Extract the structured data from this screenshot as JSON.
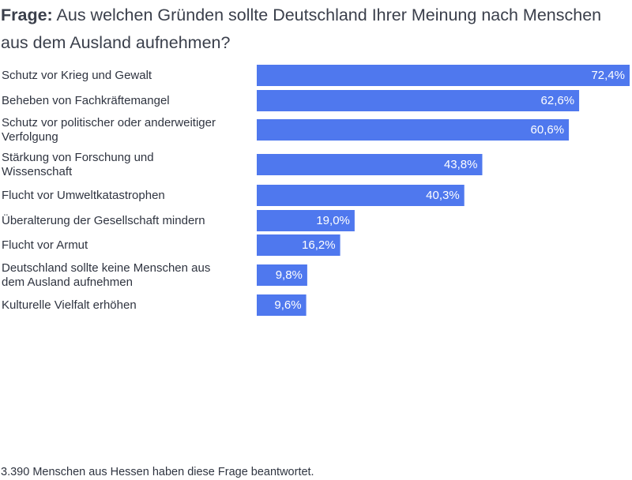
{
  "title": {
    "prefix": "Frage:",
    "text": "Aus welchen Gründen sollte Deutschland Ihrer Meinung nach Menschen aus dem Ausland aufnehmen?"
  },
  "footer": "3.390 Menschen aus Hessen haben diese Frage beantwortet.",
  "colors": {
    "bar": "#4f78ee",
    "value_text": "#ffffff",
    "text": "#2f3440"
  },
  "chart_data": {
    "type": "bar",
    "orientation": "horizontal",
    "categories": [
      "Schutz vor Krieg und Gewalt",
      "Beheben von Fachkräftemangel",
      "Schutz vor politischer oder anderweitiger Verfolgung",
      "Stärkung von Forschung und Wissenschaft",
      "Flucht vor Umweltkatastrophen",
      "Überalterung der Gesellschaft mindern",
      "Flucht vor Armut",
      "Deutschland sollte keine Menschen aus dem Ausland aufnehmen",
      "Kulturelle Vielfalt erhöhen"
    ],
    "category_lines": [
      [
        "Schutz vor Krieg und Gewalt"
      ],
      [
        "Beheben von Fachkräftemangel"
      ],
      [
        "Schutz vor politischer oder anderweitiger",
        "Verfolgung"
      ],
      [
        "Stärkung von Forschung und",
        "Wissenschaft"
      ],
      [
        "Flucht vor Umweltkatastrophen"
      ],
      [
        "Überalterung der Gesellschaft mindern"
      ],
      [
        "Flucht vor Armut"
      ],
      [
        "Deutschland sollte keine Menschen aus",
        "dem Ausland aufnehmen"
      ],
      [
        "Kulturelle Vielfalt erhöhen"
      ]
    ],
    "values": [
      72.4,
      62.6,
      60.6,
      43.8,
      40.3,
      19.0,
      16.2,
      9.8,
      9.6
    ],
    "value_labels": [
      "72,4%",
      "62,6%",
      "60,6%",
      "43,8%",
      "40,3%",
      "19,0%",
      "16,2%",
      "9,8%",
      "9,6%"
    ],
    "unit": "%",
    "xlim": [
      0,
      72.4
    ],
    "grid": false,
    "legend": "none"
  }
}
